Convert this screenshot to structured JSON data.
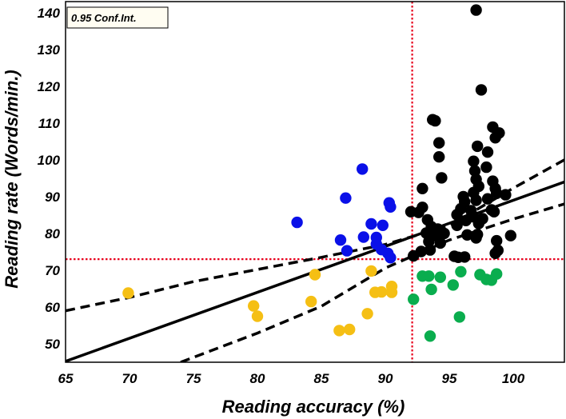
{
  "chart_data": {
    "type": "scatter",
    "xlabel": "Reading accuracy (%)",
    "ylabel": "Reading rate (Words/min.)",
    "xlim": [
      65,
      104
    ],
    "ylim": [
      45,
      143
    ],
    "x_ticks": [
      "65",
      "70",
      "75",
      "80",
      "85",
      "90",
      "95",
      "100"
    ],
    "y_ticks": [
      "50",
      "60",
      "70",
      "80",
      "90",
      "100",
      "110",
      "120",
      "130",
      "140"
    ],
    "grid": false,
    "annotation": "0.95 Conf.Int.",
    "reference_lines": {
      "x": 92.1,
      "y": 73,
      "color": "#e8001c"
    },
    "regression": {
      "slope": 1.25,
      "intercept": -36,
      "color": "#000000"
    },
    "confidence_band": [
      {
        "x": 65,
        "y": 59
      },
      {
        "x": 70,
        "y": 62.6
      },
      {
        "x": 75,
        "y": 66.9
      },
      {
        "x": 80,
        "y": 70.2
      },
      {
        "x": 85,
        "y": 73.5
      },
      {
        "x": 90,
        "y": 77
      },
      {
        "x": 95,
        "y": 82.1
      },
      {
        "x": 100,
        "y": 92.3
      },
      {
        "x": 104,
        "y": 100
      }
    ],
    "confidence_band_lower": [
      {
        "x": 74,
        "y": 45
      },
      {
        "x": 80,
        "y": 52.9
      },
      {
        "x": 85,
        "y": 60.2
      },
      {
        "x": 90,
        "y": 70.6
      },
      {
        "x": 95,
        "y": 78.2
      },
      {
        "x": 100,
        "y": 83.9
      },
      {
        "x": 104,
        "y": 88
      }
    ],
    "series": [
      {
        "color": "#0a10e8",
        "points": [
          [
            83.1,
            83
          ],
          [
            86.9,
            89.6
          ],
          [
            86.5,
            78.2
          ],
          [
            87.0,
            75.3
          ],
          [
            88.2,
            97.5
          ],
          [
            88.9,
            82.6
          ],
          [
            88.3,
            79.0
          ],
          [
            89.3,
            78.9
          ],
          [
            89.3,
            77.1
          ],
          [
            89.8,
            82.2
          ],
          [
            90.3,
            88.3
          ],
          [
            90.4,
            87.2
          ],
          [
            90.2,
            74.6
          ],
          [
            90.4,
            73.4
          ],
          [
            89.7,
            75.6
          ]
        ]
      },
      {
        "color": "#f5bf14",
        "points": [
          [
            69.9,
            63.8
          ],
          [
            79.7,
            60.3
          ],
          [
            80.0,
            57.5
          ],
          [
            84.2,
            61.5
          ],
          [
            84.5,
            68.8
          ],
          [
            86.4,
            53.6
          ],
          [
            87.2,
            53.9
          ],
          [
            88.6,
            58.2
          ],
          [
            88.9,
            69.8
          ],
          [
            89.2,
            64.0
          ],
          [
            89.7,
            64.1
          ],
          [
            90.5,
            65.6
          ],
          [
            90.5,
            64.0
          ]
        ]
      },
      {
        "color": "#0aad4e",
        "points": [
          [
            92.2,
            62.1
          ],
          [
            92.9,
            68.4
          ],
          [
            93.4,
            68.4
          ],
          [
            93.6,
            64.8
          ],
          [
            93.5,
            52.1
          ],
          [
            94.3,
            68.1
          ],
          [
            95.3,
            66.0
          ],
          [
            95.8,
            57.3
          ],
          [
            95.9,
            69.6
          ],
          [
            97.4,
            68.8
          ],
          [
            97.9,
            67.5
          ],
          [
            98.3,
            67.3
          ],
          [
            98.7,
            69.0
          ]
        ]
      },
      {
        "color": "#000000",
        "points": [
          [
            97.1,
            140.7
          ],
          [
            97.5,
            119.0
          ],
          [
            93.7,
            110.9
          ],
          [
            93.9,
            110.6
          ],
          [
            94.2,
            104.6
          ],
          [
            94.2,
            100.8
          ],
          [
            94.4,
            95.1
          ],
          [
            98.4,
            108.9
          ],
          [
            98.6,
            106.0
          ],
          [
            98.9,
            107.3
          ],
          [
            96.9,
            99.6
          ],
          [
            97.0,
            97.0
          ],
          [
            97.2,
            103.7
          ],
          [
            97.9,
            98.0
          ],
          [
            98.0,
            102.1
          ],
          [
            97.1,
            94.7
          ],
          [
            97.3,
            92.8
          ],
          [
            96.9,
            91.1
          ],
          [
            97.1,
            89.0
          ],
          [
            98.4,
            94.2
          ],
          [
            98.6,
            92.2
          ],
          [
            99.4,
            90.5
          ],
          [
            98.7,
            90.9
          ],
          [
            98.0,
            89.4
          ],
          [
            98.3,
            86.4
          ],
          [
            98.5,
            85.9
          ],
          [
            96.1,
            90.0
          ],
          [
            96.2,
            88.6
          ],
          [
            95.9,
            86.7
          ],
          [
            96.3,
            83.5
          ],
          [
            95.6,
            85.1
          ],
          [
            95.6,
            82.2
          ],
          [
            96.4,
            79.6
          ],
          [
            96.7,
            86.2
          ],
          [
            96.9,
            84.5
          ],
          [
            97.3,
            82.7
          ],
          [
            97.6,
            84.0
          ],
          [
            92.0,
            85.9
          ],
          [
            92.6,
            85.7
          ],
          [
            92.9,
            87.1
          ],
          [
            93.3,
            83.7
          ],
          [
            93.6,
            81.8
          ],
          [
            93.8,
            80.8
          ],
          [
            93.2,
            80.1
          ],
          [
            93.4,
            77.8
          ],
          [
            92.8,
            75.1
          ],
          [
            92.2,
            73.9
          ],
          [
            93.5,
            75.5
          ],
          [
            94.1,
            81.2
          ],
          [
            93.9,
            79.4
          ],
          [
            94.3,
            77.4
          ],
          [
            92.9,
            92.2
          ],
          [
            95.4,
            73.8
          ],
          [
            95.7,
            73.5
          ],
          [
            96.2,
            73.6
          ],
          [
            97.1,
            78.8
          ],
          [
            97.2,
            79.7
          ],
          [
            98.7,
            78.0
          ],
          [
            98.6,
            74.6
          ],
          [
            98.8,
            75.4
          ],
          [
            99.8,
            79.4
          ],
          [
            94.6,
            80.0
          ]
        ]
      }
    ]
  }
}
